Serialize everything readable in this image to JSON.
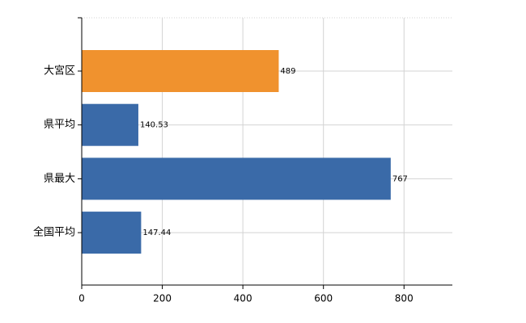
{
  "chart_data": {
    "type": "bar",
    "orientation": "horizontal",
    "categories": [
      "大宮区",
      "県平均",
      "県最大",
      "全国平均"
    ],
    "values": [
      489,
      140.53,
      767,
      147.44
    ],
    "colors": [
      "#f0922e",
      "#3a6aa8",
      "#3a6aa8",
      "#3a6aa8"
    ],
    "xlim": [
      0,
      920
    ],
    "xticks": [
      0,
      200,
      400,
      600,
      800
    ],
    "grid": true
  }
}
